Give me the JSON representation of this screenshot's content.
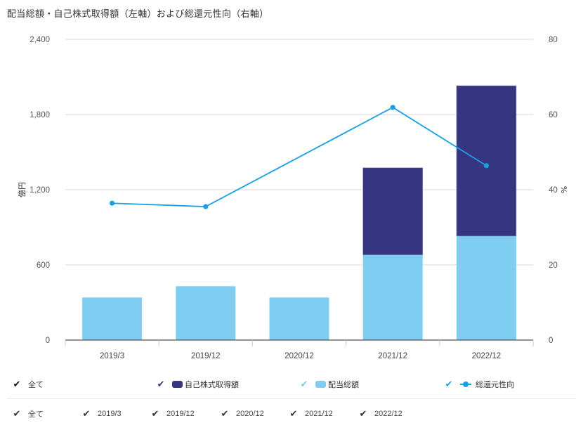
{
  "title": "配当総額・自己株式取得額（左軸）および総還元性向（右軸）",
  "colors": {
    "buyback": "#36357f",
    "dividend": "#80cdf2",
    "payout_line": "#1ba1e2",
    "grid": "#d9d9d9",
    "axis": "#555555"
  },
  "axes": {
    "left_unit": "億円",
    "right_unit": "%",
    "left_ticks": [
      "0",
      "600",
      "1,200",
      "1,800",
      "2,400"
    ],
    "right_ticks": [
      "0",
      "20",
      "40",
      "60",
      "80"
    ]
  },
  "legend": {
    "series_items": [
      {
        "label": "全て",
        "check_color": "#111111",
        "type": "all"
      },
      {
        "label": "自己株式取得額",
        "check_color": "#36357f",
        "type": "bar",
        "swatch": "#36357f"
      },
      {
        "label": "配当総額",
        "check_color": "#80cdf2",
        "type": "bar",
        "swatch": "#80cdf2"
      },
      {
        "label": "総還元性向",
        "check_color": "#1ba1e2",
        "type": "line",
        "swatch": "#1ba1e2"
      }
    ],
    "category_items": [
      {
        "label": "全て"
      },
      {
        "label": "2019/3"
      },
      {
        "label": "2019/12"
      },
      {
        "label": "2020/12"
      },
      {
        "label": "2021/12"
      },
      {
        "label": "2022/12"
      }
    ],
    "check_glyph": "✔"
  },
  "chart_data": {
    "type": "bar",
    "subtype": "stacked bar + line (dual axis)",
    "title": "配当総額・自己株式取得額（左軸）および総還元性向（右軸）",
    "categories": [
      "2019/3",
      "2019/12",
      "2020/12",
      "2021/12",
      "2022/12"
    ],
    "series": [
      {
        "name": "配当総額",
        "type": "bar",
        "axis": "left",
        "stack": "total",
        "values": [
          340,
          430,
          340,
          680,
          830
        ]
      },
      {
        "name": "自己株式取得額",
        "type": "bar",
        "axis": "left",
        "stack": "total",
        "values": [
          0,
          0,
          0,
          695,
          1200
        ]
      },
      {
        "name": "総還元性向",
        "type": "line",
        "axis": "right",
        "values": [
          36.4,
          35.5,
          null,
          61.9,
          46.4
        ]
      }
    ],
    "xlabel": "",
    "ylabel": "億円",
    "ylabel_right": "%",
    "ylim": [
      0,
      2400
    ],
    "ylim_right": [
      0,
      80
    ],
    "yticks": [
      0,
      600,
      1200,
      1800,
      2400
    ],
    "yticks_right": [
      0,
      20,
      40,
      60,
      80
    ],
    "grid": true,
    "legend_position": "bottom"
  }
}
